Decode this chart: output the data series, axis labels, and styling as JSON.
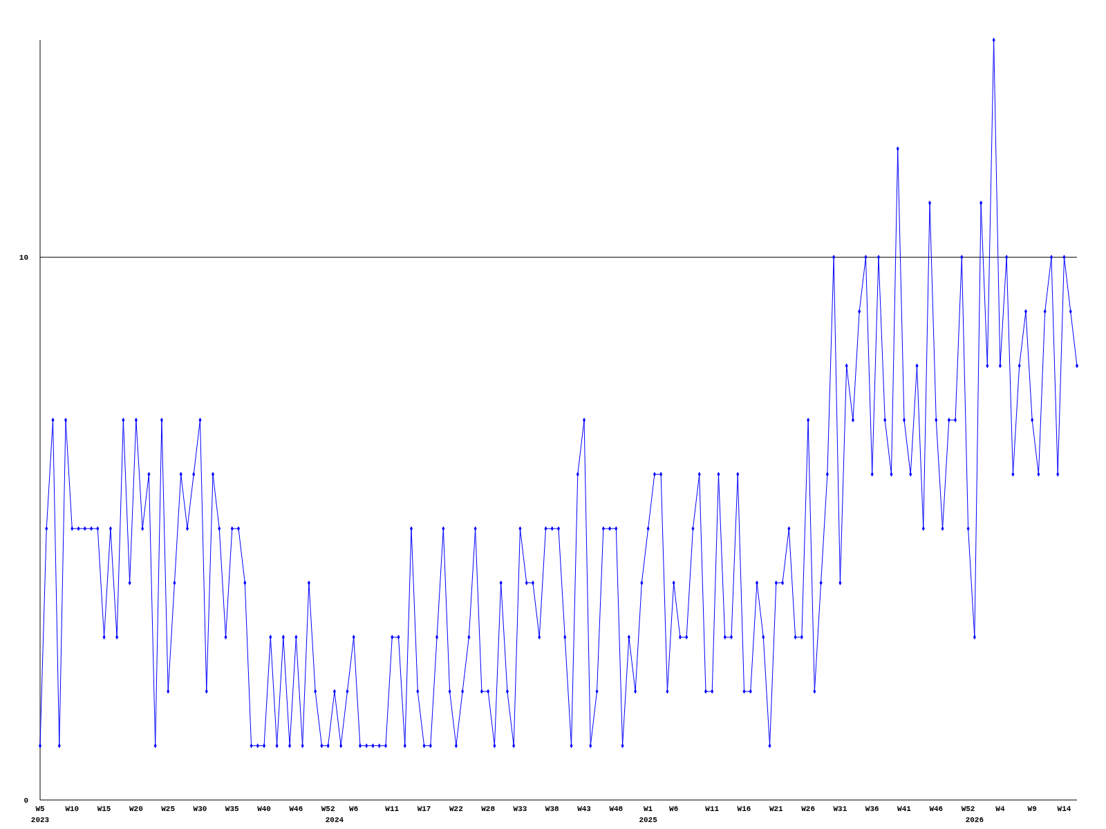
{
  "chart_data": {
    "type": "line",
    "categories": [
      "W5\n2023",
      null,
      null,
      null,
      null,
      "W10",
      null,
      null,
      null,
      null,
      "W15",
      null,
      null,
      null,
      null,
      "W20",
      null,
      null,
      null,
      null,
      "W25",
      null,
      null,
      null,
      null,
      "W30",
      null,
      null,
      null,
      null,
      "W35",
      null,
      null,
      null,
      null,
      "W40",
      null,
      null,
      null,
      null,
      "W46",
      null,
      null,
      null,
      null,
      "W52",
      "\n2024",
      null,
      null,
      "W6",
      null,
      null,
      null,
      null,
      null,
      "W11",
      null,
      null,
      null,
      null,
      "W17",
      null,
      null,
      null,
      null,
      "W22",
      null,
      null,
      null,
      null,
      "W28",
      null,
      null,
      null,
      null,
      "W33",
      null,
      null,
      null,
      null,
      "W38",
      null,
      null,
      null,
      null,
      "W43",
      null,
      null,
      null,
      null,
      "W48",
      null,
      null,
      null,
      null,
      "W1\n2025",
      null,
      null,
      null,
      "W6",
      null,
      null,
      null,
      null,
      null,
      "W11",
      null,
      null,
      null,
      null,
      "W16",
      null,
      null,
      null,
      null,
      "W21",
      null,
      null,
      null,
      null,
      "W26",
      null,
      null,
      null,
      null,
      "W31",
      null,
      null,
      null,
      null,
      "W36",
      null,
      null,
      null,
      null,
      "W41",
      null,
      null,
      null,
      null,
      "W46",
      null,
      null,
      null,
      null,
      "W52",
      "\n2026",
      null,
      null,
      null,
      "W4",
      null,
      null,
      null,
      null,
      "W9",
      null,
      null,
      null,
      null,
      "W14",
      null,
      null
    ],
    "series": [
      {
        "color": "#0000ff",
        "values": [
          1,
          5,
          7,
          1,
          7,
          5,
          5,
          5,
          5,
          5,
          3,
          5,
          3,
          7,
          4,
          7,
          5,
          6,
          1,
          7,
          2,
          4,
          6,
          5,
          6,
          7,
          2,
          6,
          5,
          3,
          5,
          5,
          4,
          1,
          1,
          1,
          3,
          1,
          3,
          1,
          3,
          1,
          4,
          2,
          1,
          1,
          2,
          1,
          2,
          3,
          1,
          1,
          1,
          1,
          1,
          3,
          3,
          1,
          5,
          2,
          1,
          1,
          3,
          5,
          2,
          1,
          2,
          3,
          5,
          2,
          2,
          1,
          4,
          2,
          1,
          5,
          4,
          4,
          3,
          5,
          5,
          5,
          3,
          1,
          6,
          7,
          1,
          2,
          5,
          5,
          5,
          1,
          3,
          2,
          4,
          5,
          6,
          6,
          2,
          4,
          3,
          3,
          5,
          6,
          2,
          2,
          6,
          3,
          3,
          6,
          2,
          2,
          4,
          3,
          1,
          4,
          4,
          5,
          3,
          3,
          7,
          2,
          4,
          6,
          10,
          4,
          8,
          7,
          9,
          10,
          6,
          10,
          7,
          6,
          12,
          7,
          6,
          8,
          5,
          11,
          7,
          5,
          7,
          7,
          10,
          5,
          3,
          11,
          8,
          14,
          8,
          10,
          6,
          8,
          9,
          7,
          6,
          9,
          10,
          6,
          10,
          9,
          8
        ]
      }
    ],
    "ylim": [
      0,
      14
    ],
    "yticks": [
      0,
      10
    ],
    "grid": "y",
    "marker": "diamond",
    "line_style": "solid"
  }
}
